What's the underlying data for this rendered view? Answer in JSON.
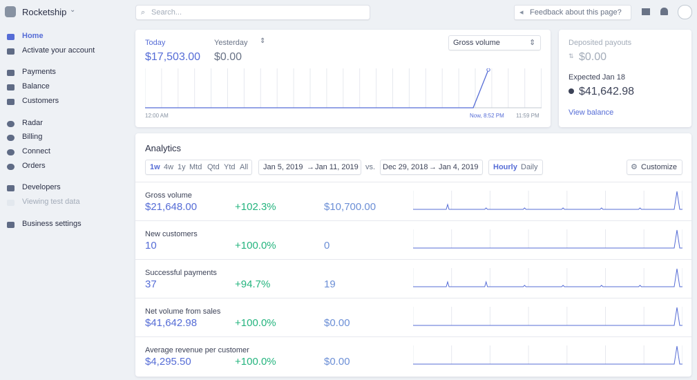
{
  "sidebar": {
    "account": "Rocketship",
    "groups": [
      [
        "Home",
        "Activate your account"
      ],
      [
        "Payments",
        "Balance",
        "Customers"
      ],
      [
        "Radar",
        "Billing",
        "Connect",
        "Orders"
      ],
      [
        "Developers",
        "Viewing test data"
      ],
      [
        "Business settings"
      ]
    ]
  },
  "topbar": {
    "search": "Search...",
    "feedback": "Feedback about this page?"
  },
  "summary": {
    "today_label": "Today",
    "today_value": "$17,503.00",
    "yesterday_label": "Yesterday",
    "yesterday_value": "$0.00",
    "metric_select": "Gross volume",
    "x_labels": [
      "12:00 AM",
      "Now, 8:52 PM",
      "11:59 PM"
    ]
  },
  "payouts": {
    "deposited_label": "Deposited payouts",
    "deposited_value": "$0.00",
    "expected_label": "Expected Jan 18",
    "expected_value": "$41,642.98",
    "link": "View balance"
  },
  "analytics": {
    "title": "Analytics",
    "ranges": [
      "1w",
      "4w",
      "1y",
      "Mtd",
      "Qtd",
      "Ytd",
      "All"
    ],
    "period_start": "Jan 5, 2019",
    "period_end": "Jan 11, 2019",
    "vs": "vs.",
    "compare_start": "Dec 29, 2018",
    "compare_end": "Jan 4, 2019",
    "granularity": [
      "Hourly",
      "Daily"
    ],
    "customize": "Customize",
    "rows": [
      {
        "label": "Gross volume",
        "value": "$21,648.00",
        "change": "+102.3%",
        "previous": "$10,700.00"
      },
      {
        "label": "New customers",
        "value": "10",
        "change": "+100.0%",
        "previous": "0"
      },
      {
        "label": "Successful payments",
        "value": "37",
        "change": "+94.7%",
        "previous": "19"
      },
      {
        "label": "Net volume from sales",
        "value": "$41,642.98",
        "change": "+100.0%",
        "previous": "$0.00"
      },
      {
        "label": "Average revenue per customer",
        "value": "$4,295.50",
        "change": "+100.0%",
        "previous": "$0.00"
      }
    ]
  }
}
